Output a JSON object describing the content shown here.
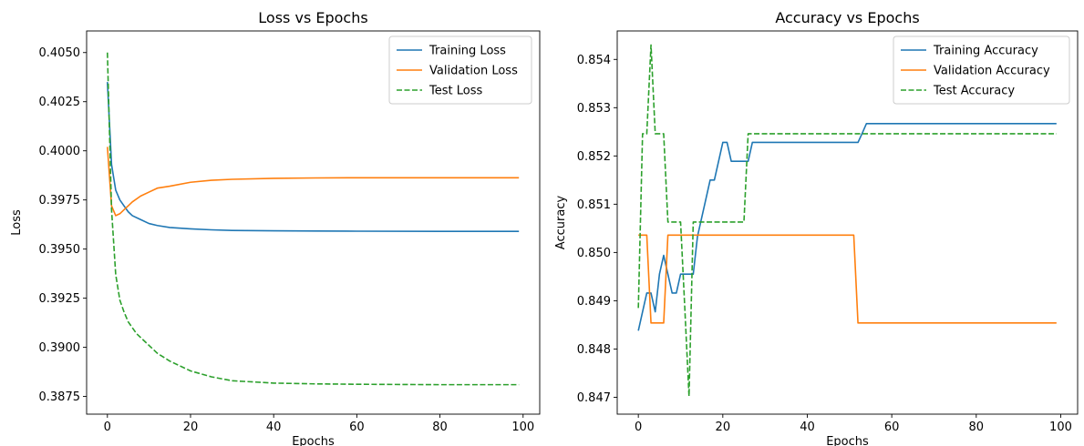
{
  "chart_data": [
    {
      "type": "line",
      "title": "Loss vs Epochs",
      "xlabel": "Epochs",
      "ylabel": "Loss",
      "xlim": [
        -5,
        104
      ],
      "ylim": [
        0.3866,
        0.4061
      ],
      "xticks": [
        0,
        20,
        40,
        60,
        80,
        100
      ],
      "xtick_labels": [
        "0",
        "20",
        "40",
        "60",
        "80",
        "100"
      ],
      "yticks": [
        0.3875,
        0.39,
        0.3925,
        0.395,
        0.3975,
        0.4,
        0.4025,
        0.405
      ],
      "ytick_labels": [
        "0.3875",
        "0.3900",
        "0.3925",
        "0.3950",
        "0.3975",
        "0.4000",
        "0.4025",
        "0.4050"
      ],
      "legend_position": "upper right",
      "grid": false,
      "series": [
        {
          "name": "Training Loss",
          "color": "#1f77b4",
          "style": "solid",
          "x": [
            0,
            1,
            2,
            3,
            4,
            5,
            6,
            8,
            10,
            12,
            15,
            20,
            25,
            30,
            40,
            50,
            60,
            80,
            99
          ],
          "y": [
            0.4035,
            0.3993,
            0.398,
            0.3975,
            0.3972,
            0.3969,
            0.3967,
            0.3965,
            0.3963,
            0.3962,
            0.3961,
            0.39603,
            0.39598,
            0.39595,
            0.39593,
            0.39592,
            0.39591,
            0.3959,
            0.3959
          ]
        },
        {
          "name": "Validation Loss",
          "color": "#ff7f0e",
          "style": "solid",
          "x": [
            0,
            1,
            2,
            3,
            4,
            5,
            6,
            8,
            10,
            12,
            15,
            20,
            25,
            30,
            40,
            50,
            60,
            80,
            99
          ],
          "y": [
            0.4002,
            0.3972,
            0.3967,
            0.3968,
            0.397,
            0.3972,
            0.3974,
            0.3977,
            0.3979,
            0.3981,
            0.3982,
            0.3984,
            0.3985,
            0.39855,
            0.3986,
            0.39862,
            0.39863,
            0.39863,
            0.39863
          ]
        },
        {
          "name": "Test Loss",
          "color": "#2ca02c",
          "style": "dashed",
          "x": [
            0,
            1,
            2,
            3,
            4,
            5,
            6,
            7,
            8,
            10,
            12,
            15,
            20,
            25,
            30,
            40,
            50,
            60,
            80,
            99
          ],
          "y": [
            0.405,
            0.397,
            0.3937,
            0.3924,
            0.3918,
            0.3913,
            0.391,
            0.3907,
            0.3905,
            0.3901,
            0.3897,
            0.3893,
            0.3888,
            0.3885,
            0.3883,
            0.38818,
            0.38814,
            0.38812,
            0.3881,
            0.3881
          ]
        }
      ]
    },
    {
      "type": "line",
      "title": "Accuracy vs Epochs",
      "xlabel": "Epochs",
      "ylabel": "Accuracy",
      "xlim": [
        -5,
        104
      ],
      "ylim": [
        0.84665,
        0.85459
      ],
      "xticks": [
        0,
        20,
        40,
        60,
        80,
        100
      ],
      "xtick_labels": [
        "0",
        "20",
        "40",
        "60",
        "80",
        "100"
      ],
      "yticks": [
        0.847,
        0.848,
        0.849,
        0.85,
        0.851,
        0.852,
        0.853,
        0.854
      ],
      "ytick_labels": [
        "0.847",
        "0.848",
        "0.849",
        "0.850",
        "0.851",
        "0.852",
        "0.853",
        "0.854"
      ],
      "legend_position": "upper right",
      "grid": false,
      "series": [
        {
          "name": "Training Accuracy",
          "color": "#1f77b4",
          "style": "solid",
          "x": [
            0,
            1,
            2,
            3,
            4,
            5,
            6,
            7,
            8,
            9,
            10,
            11,
            12,
            13,
            14,
            15,
            16,
            17,
            18,
            19,
            20,
            21,
            22,
            23,
            24,
            25,
            26,
            27,
            28,
            30,
            40,
            50,
            52,
            53,
            54,
            60,
            80,
            99
          ],
          "y": [
            0.84838,
            0.84877,
            0.84916,
            0.84916,
            0.84877,
            0.84955,
            0.84994,
            0.84955,
            0.84916,
            0.84916,
            0.84955,
            0.84955,
            0.84955,
            0.84955,
            0.85033,
            0.85072,
            0.85111,
            0.8515,
            0.8515,
            0.85189,
            0.85228,
            0.85228,
            0.85189,
            0.85189,
            0.85189,
            0.85189,
            0.85189,
            0.85228,
            0.85228,
            0.85228,
            0.85228,
            0.85228,
            0.85228,
            0.85247,
            0.85267,
            0.85267,
            0.85267,
            0.85267
          ]
        },
        {
          "name": "Validation Accuracy",
          "color": "#ff7f0e",
          "style": "solid",
          "x": [
            0,
            1,
            2,
            3,
            4,
            5,
            6,
            7,
            8,
            20,
            40,
            51,
            52,
            53,
            60,
            80,
            99
          ],
          "y": [
            0.85036,
            0.85036,
            0.85036,
            0.84854,
            0.84854,
            0.84854,
            0.84854,
            0.85036,
            0.85036,
            0.85036,
            0.85036,
            0.85036,
            0.84854,
            0.84854,
            0.84854,
            0.84854,
            0.84854
          ]
        },
        {
          "name": "Test Accuracy",
          "color": "#2ca02c",
          "style": "dashed",
          "x": [
            0,
            1,
            2,
            3,
            4,
            5,
            6,
            7,
            8,
            9,
            10,
            11,
            12,
            13,
            14,
            15,
            20,
            25,
            26,
            27,
            30,
            40,
            60,
            80,
            99
          ],
          "y": [
            0.84885,
            0.85246,
            0.85246,
            0.8543,
            0.85246,
            0.85246,
            0.85246,
            0.85063,
            0.85063,
            0.85063,
            0.85063,
            0.84885,
            0.84702,
            0.85063,
            0.85063,
            0.85063,
            0.85063,
            0.85063,
            0.85246,
            0.85246,
            0.85246,
            0.85246,
            0.85246,
            0.85246,
            0.85246
          ]
        }
      ]
    }
  ]
}
